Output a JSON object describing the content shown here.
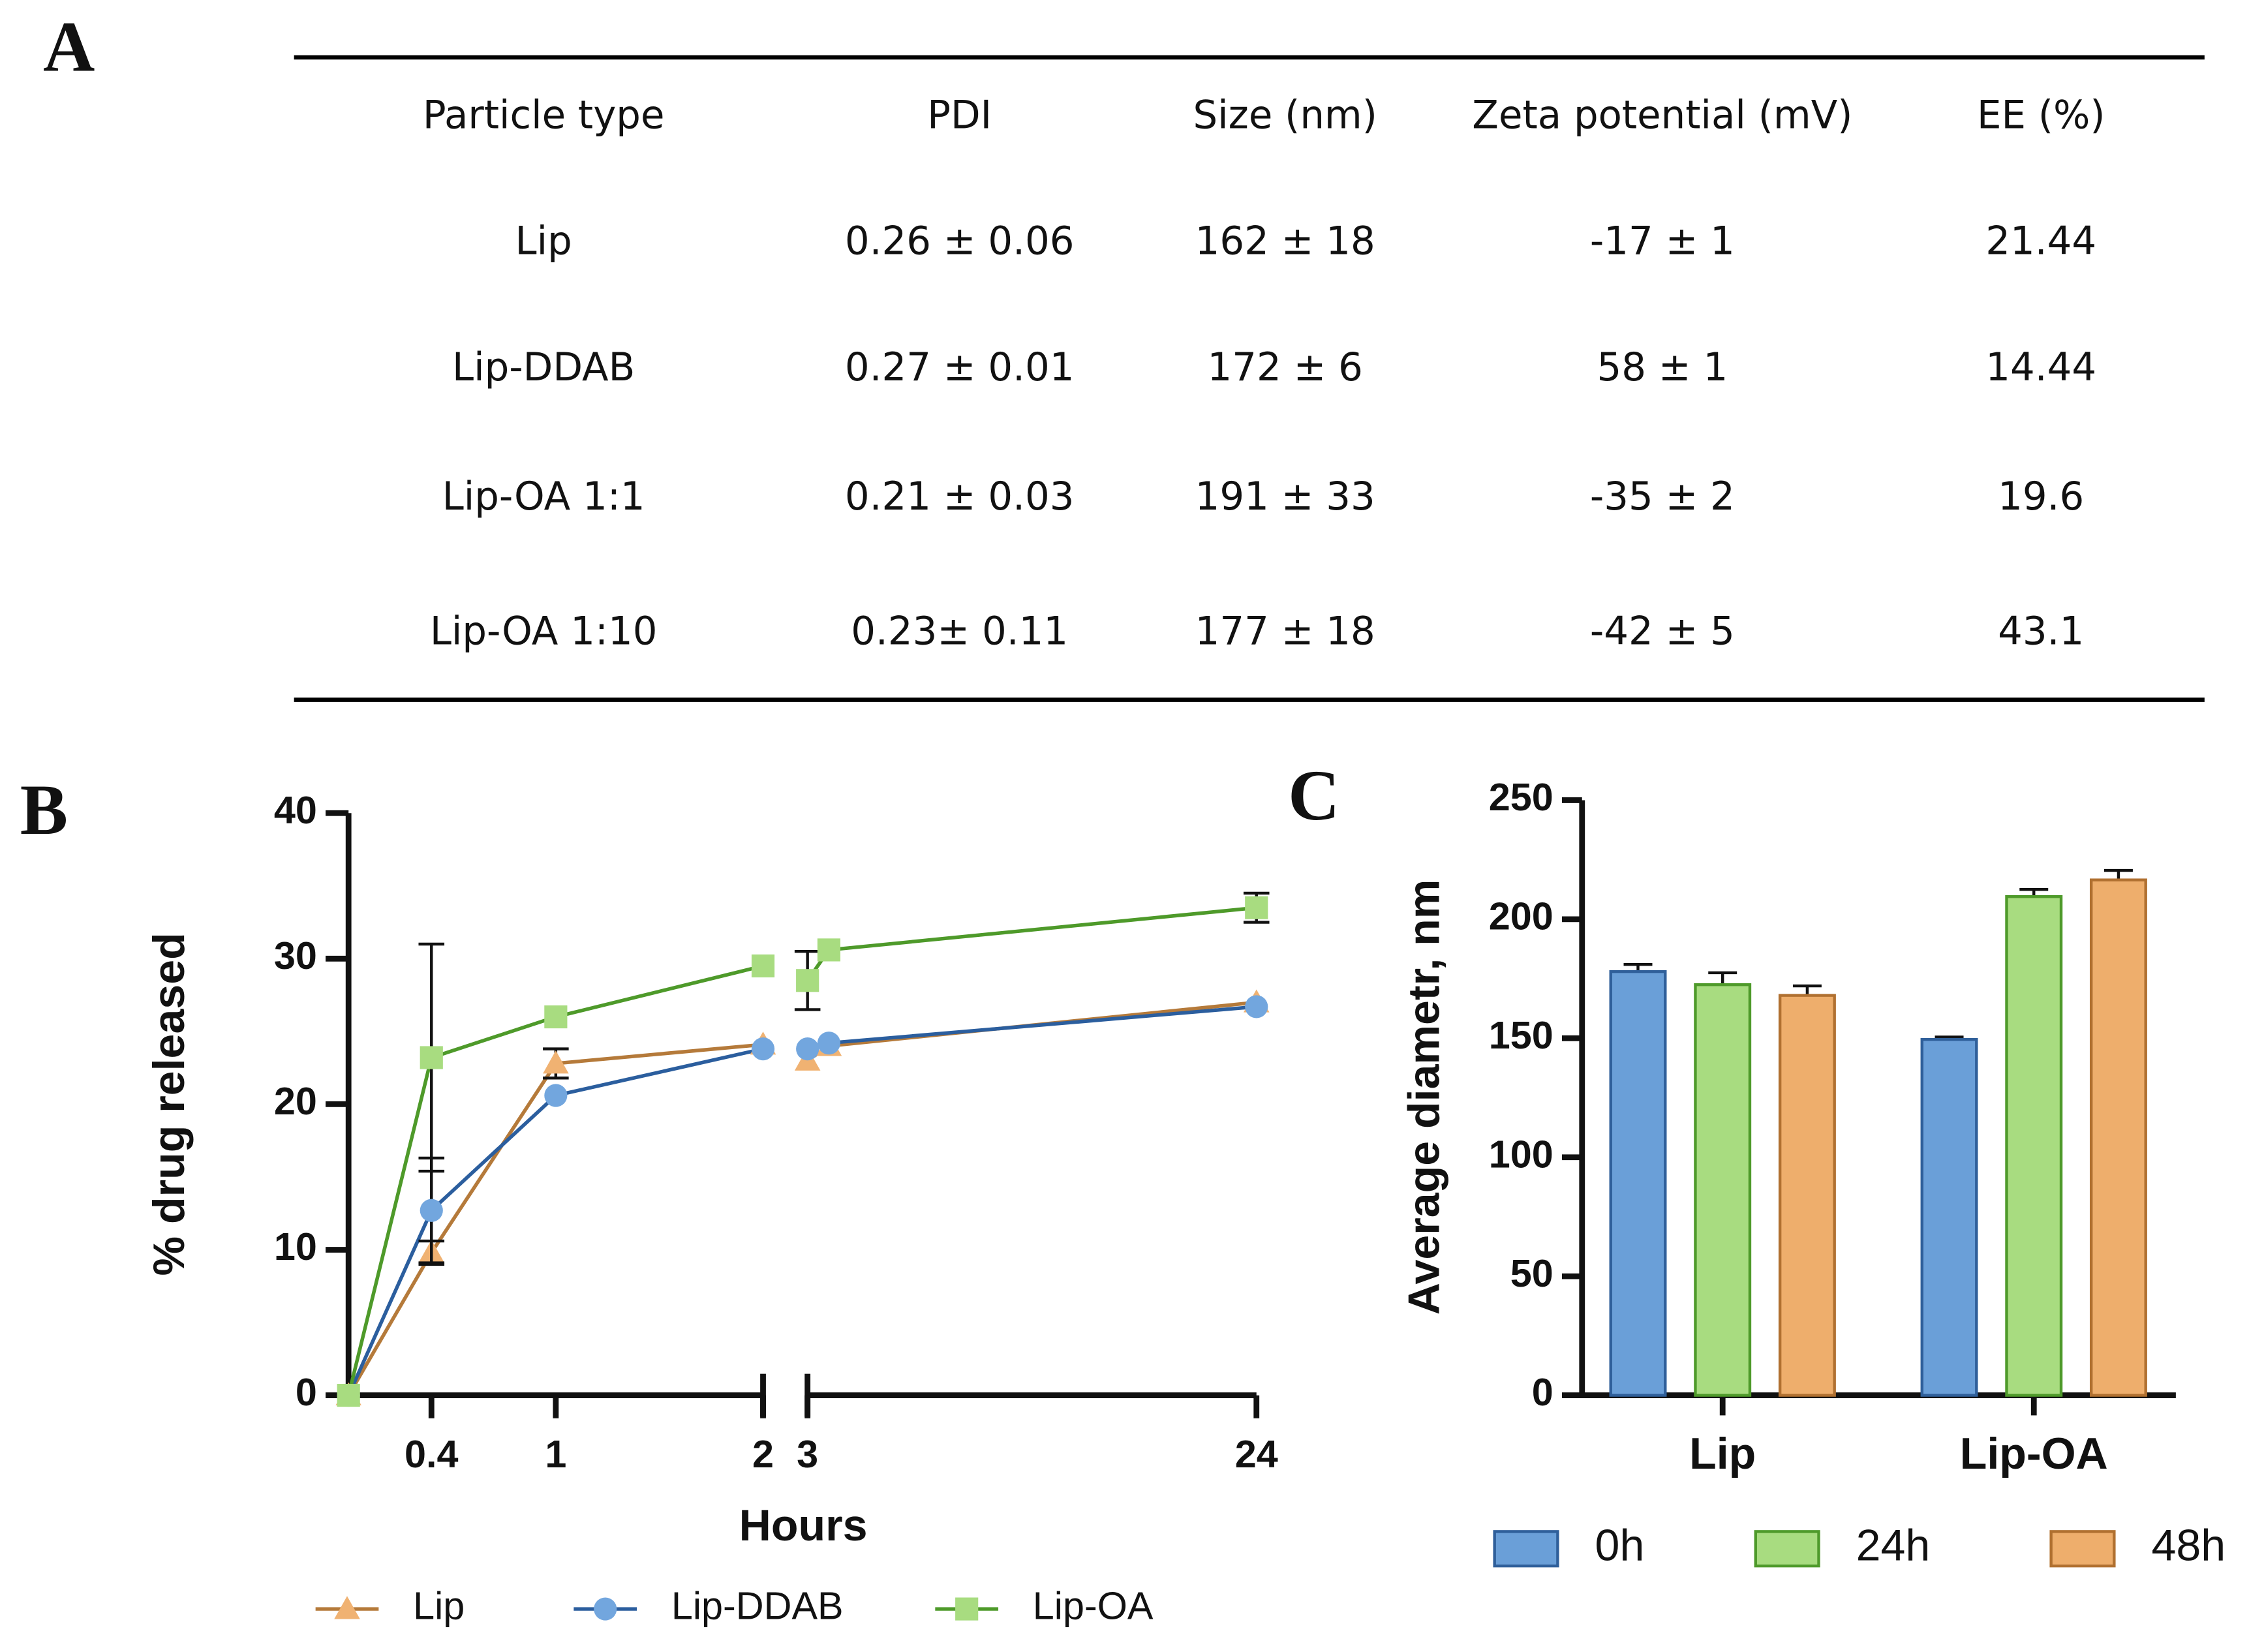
{
  "table": {
    "label": "A",
    "columns": [
      "Particle type",
      "PDI",
      "Size (nm)",
      "Zeta potential (mV)",
      "EE (%)"
    ],
    "rows": [
      [
        "Lip",
        "0.26 ± 0.06",
        "162 ± 18",
        "-17 ± 1",
        "21.44"
      ],
      [
        "Lip-DDAB",
        "0.27 ± 0.01",
        "172 ± 6",
        "58 ± 1",
        "14.44"
      ],
      [
        "Lip-OA 1:1",
        "0.21 ± 0.03",
        "191 ± 33",
        "-35 ± 2",
        "19.6"
      ],
      [
        "Lip-OA 1:10",
        "0.23± 0.11",
        "177 ± 18",
        "-42 ± 5",
        "43.1"
      ]
    ]
  },
  "chart_data": [
    {
      "label": "B",
      "type": "line",
      "x_label": "Hours",
      "y_label": "% drug released",
      "x": [
        0,
        0.4,
        1,
        2,
        3,
        4,
        24
      ],
      "xlim": [
        0,
        24
      ],
      "x_segments": [
        [
          0,
          2
        ],
        [
          3,
          24
        ]
      ],
      "xticks": [
        0.4,
        1,
        2,
        3,
        24
      ],
      "ylim": [
        0,
        40
      ],
      "yticks": [
        0,
        10,
        20,
        30,
        40
      ],
      "legend": "bottom",
      "series": [
        {
          "name": "Lip",
          "marker": "triangle",
          "color": "#f0b272",
          "line_color": "#b57a3a",
          "values": [
            0,
            9.8,
            22.8,
            24.1,
            23.0,
            24.0,
            27.0
          ],
          "errors": [
            null,
            0.8,
            1.0,
            null,
            null,
            null,
            null
          ]
        },
        {
          "name": "Lip-DDAB",
          "marker": "circle",
          "color": "#72a6de",
          "line_color": "#2b5e9e",
          "values": [
            0,
            12.7,
            20.6,
            23.8,
            23.8,
            24.2,
            26.7
          ],
          "errors": [
            null,
            3.6,
            null,
            null,
            null,
            null,
            null
          ]
        },
        {
          "name": "Lip-OA",
          "marker": "square",
          "color": "#a8dc80",
          "line_color": "#4e9a2a",
          "values": [
            0,
            23.2,
            26.0,
            29.5,
            28.5,
            30.6,
            33.5
          ],
          "errors": [
            null,
            7.8,
            null,
            null,
            2.0,
            null,
            1.0
          ]
        }
      ]
    },
    {
      "label": "C",
      "type": "bar",
      "y_label": "Average diametr, nm",
      "categories": [
        "Lip",
        "Lip-OA"
      ],
      "ylim": [
        0,
        250
      ],
      "yticks": [
        0,
        50,
        100,
        150,
        200,
        250
      ],
      "legend": "bottom",
      "series": [
        {
          "name": "0h",
          "color": "#6a9fd8",
          "edge_color": "#2f5f9a",
          "values": [
            178,
            149.5
          ],
          "errors": [
            3,
            1
          ]
        },
        {
          "name": "24h",
          "color": "#a8dc80",
          "edge_color": "#4e9a2a",
          "values": [
            172.5,
            209.5
          ],
          "errors": [
            5,
            3
          ]
        },
        {
          "name": "48h",
          "color": "#eeae6c",
          "edge_color": "#b07030",
          "values": [
            168,
            216.5
          ],
          "errors": [
            4,
            4
          ]
        }
      ]
    }
  ]
}
